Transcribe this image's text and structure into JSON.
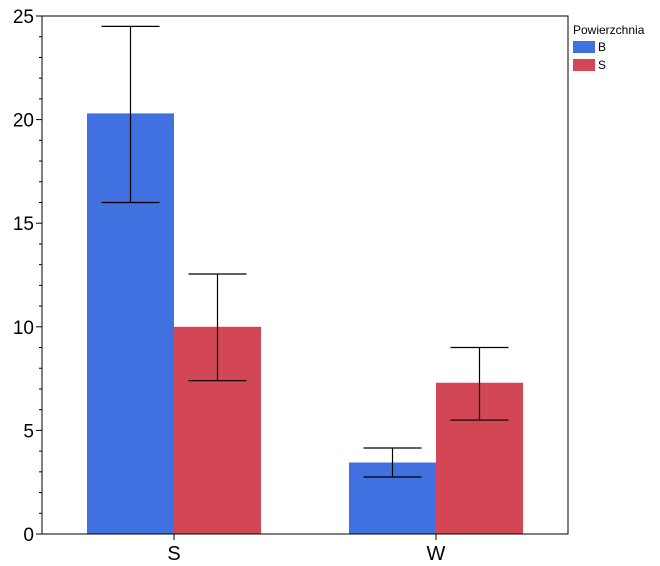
{
  "chart_data": {
    "type": "bar",
    "categories": [
      "S",
      "W"
    ],
    "ylim": [
      0,
      25
    ],
    "yticks": [
      0,
      5,
      10,
      15,
      20,
      25
    ],
    "legend": {
      "title": "Powierzchnia",
      "placement": "right-top"
    },
    "series": [
      {
        "name": "B",
        "color": "#4171e0",
        "values": [
          20.3,
          3.45
        ],
        "error_low": [
          16.0,
          2.75
        ],
        "error_high": [
          24.5,
          4.15
        ]
      },
      {
        "name": "S",
        "color": "#d34655",
        "values": [
          10.0,
          7.3
        ],
        "error_low": [
          7.4,
          5.5
        ],
        "error_high": [
          12.55,
          9.0
        ]
      }
    ],
    "grid": false
  }
}
